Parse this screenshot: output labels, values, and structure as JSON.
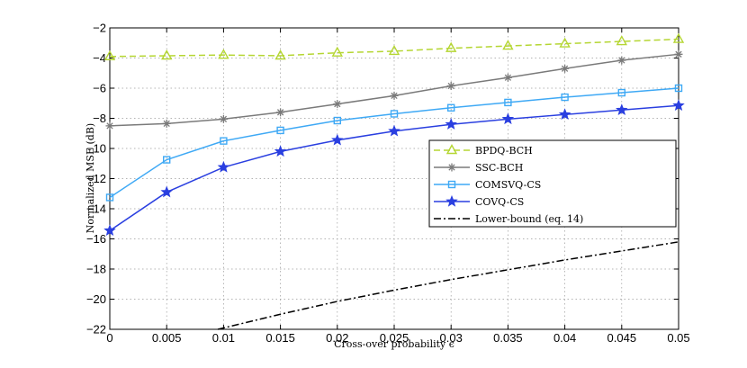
{
  "chart_data": {
    "type": "line",
    "title": "",
    "xlabel": "Cross-over probability ϵ",
    "ylabel": "Normalized MSE (dB)",
    "xlim": [
      0,
      0.05
    ],
    "ylim": [
      -22,
      -2
    ],
    "xticks": [
      0,
      0.005,
      0.01,
      0.015,
      0.02,
      0.025,
      0.03,
      0.035,
      0.04,
      0.045,
      0.05
    ],
    "xtick_labels": [
      "0",
      "0.005",
      "0.01",
      "0.015",
      "0.02",
      "0.025",
      "0.03",
      "0.035",
      "0.04",
      "0.045",
      "0.05"
    ],
    "yticks": [
      -22,
      -20,
      -18,
      -16,
      -14,
      -12,
      -10,
      -8,
      -6,
      -4,
      -2
    ],
    "ytick_labels": [
      "−22",
      "−20",
      "−18",
      "−16",
      "−14",
      "−12",
      "−10",
      "−8",
      "−6",
      "−4",
      "−2"
    ],
    "grid": true,
    "legend_position": "center-right",
    "series": [
      {
        "name": "BPDQ-BCH",
        "color": "#b5d633",
        "line_style": "dashed",
        "marker": "triangle",
        "x": [
          0,
          0.005,
          0.01,
          0.015,
          0.02,
          0.025,
          0.03,
          0.035,
          0.04,
          0.045,
          0.05
        ],
        "y": [
          -3.9,
          -3.85,
          -3.8,
          -3.85,
          -3.65,
          -3.55,
          -3.35,
          -3.2,
          -3.05,
          -2.9,
          -2.75
        ]
      },
      {
        "name": "SSC-BCH",
        "color": "#7a7a7a",
        "line_style": "solid",
        "marker": "asterisk",
        "x": [
          0,
          0.005,
          0.01,
          0.015,
          0.02,
          0.025,
          0.03,
          0.035,
          0.04,
          0.045,
          0.05
        ],
        "y": [
          -8.5,
          -8.35,
          -8.05,
          -7.6,
          -7.05,
          -6.5,
          -5.85,
          -5.3,
          -4.7,
          -4.15,
          -3.75
        ]
      },
      {
        "name": "COMSVQ-CS",
        "color": "#3fa9f5",
        "line_style": "solid",
        "marker": "square",
        "x": [
          0,
          0.005,
          0.01,
          0.015,
          0.02,
          0.025,
          0.03,
          0.035,
          0.04,
          0.045,
          0.05
        ],
        "y": [
          -13.25,
          -10.75,
          -9.5,
          -8.8,
          -8.15,
          -7.7,
          -7.3,
          -6.95,
          -6.6,
          -6.3,
          -6.0
        ]
      },
      {
        "name": "COVQ-CS",
        "color": "#2a3fe0",
        "line_style": "solid",
        "marker": "star",
        "x": [
          0,
          0.005,
          0.01,
          0.015,
          0.02,
          0.025,
          0.03,
          0.035,
          0.04,
          0.045,
          0.05
        ],
        "y": [
          -15.45,
          -12.9,
          -11.25,
          -10.2,
          -9.45,
          -8.85,
          -8.4,
          -8.05,
          -7.75,
          -7.45,
          -7.15
        ]
      },
      {
        "name": "Lower-bound (eq. 14)",
        "color": "#000000",
        "line_style": "dashdot",
        "marker": "none",
        "x": [
          0.0095,
          0.015,
          0.02,
          0.025,
          0.03,
          0.035,
          0.04,
          0.045,
          0.05
        ],
        "y": [
          -22,
          -21.0,
          -20.15,
          -19.4,
          -18.7,
          -18.05,
          -17.4,
          -16.8,
          -16.2
        ]
      }
    ]
  }
}
